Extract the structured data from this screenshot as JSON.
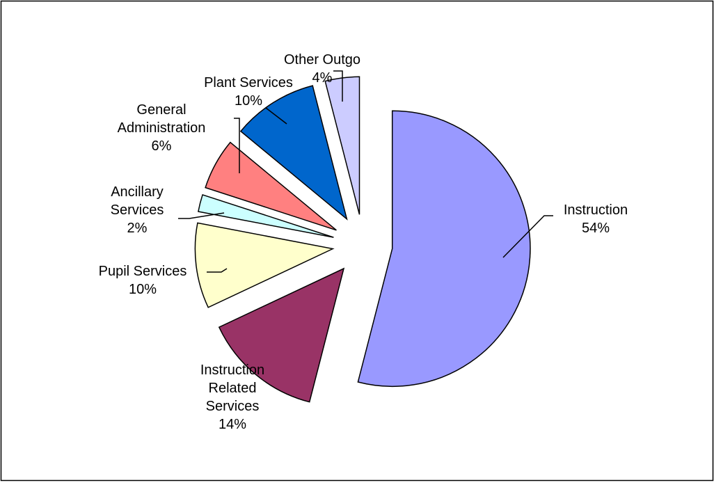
{
  "chart_data": {
    "type": "pie",
    "title": "",
    "exploded": true,
    "legend": "none",
    "slices": [
      {
        "name": "Instruction",
        "label_lines": [
          "Instruction"
        ],
        "percent_label": "54%",
        "value": 54,
        "color": "#9999ff"
      },
      {
        "name": "Instruction Related Services",
        "label_lines": [
          "Instruction",
          "Related",
          "Services"
        ],
        "percent_label": "14%",
        "value": 14,
        "color": "#993366"
      },
      {
        "name": "Pupil Services",
        "label_lines": [
          "Pupil Services"
        ],
        "percent_label": "10%",
        "value": 10,
        "color": "#ffffcc"
      },
      {
        "name": "Ancillary Services",
        "label_lines": [
          "Ancillary",
          "Services"
        ],
        "percent_label": "2%",
        "value": 2,
        "color": "#ccffff"
      },
      {
        "name": "General Administration",
        "label_lines": [
          "General",
          "Administration"
        ],
        "percent_label": "6%",
        "value": 6,
        "color": "#ff8080"
      },
      {
        "name": "Plant Services",
        "label_lines": [
          "Plant Services"
        ],
        "percent_label": "10%",
        "value": 10,
        "color": "#0066cc"
      },
      {
        "name": "Other Outgo",
        "label_lines": [
          "Other Outgo"
        ],
        "percent_label": "4%",
        "value": 4,
        "color": "#ccccff"
      }
    ]
  }
}
